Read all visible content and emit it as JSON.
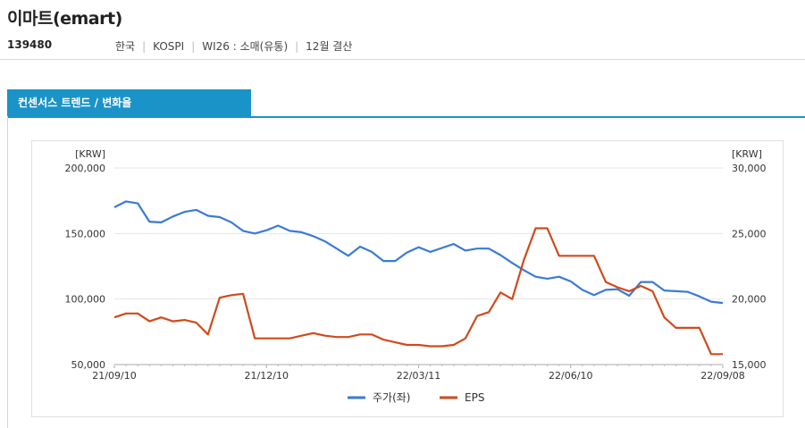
{
  "header": {
    "title": "이마트(emart)",
    "code": "139480",
    "meta": [
      "한국",
      "KOSPI",
      "WI26 : 소매(유통)",
      "12월 결산"
    ]
  },
  "tab": {
    "label": "컨센서스 트렌드 / 변화율"
  },
  "colors": {
    "accent": "#1a94c8",
    "price": "#3a7bd5",
    "eps": "#d04a1c",
    "grid": "#e6e6e6"
  },
  "chart_data": {
    "type": "line",
    "left_unit": "[KRW]",
    "right_unit": "[KRW]",
    "y_left": {
      "min": 50000,
      "max": 200000,
      "ticks": [
        "200,000",
        "150,000",
        "100,000",
        "50,000"
      ]
    },
    "y_right": {
      "min": 15000,
      "max": 30000,
      "ticks": [
        "30,000",
        "25,000",
        "20,000",
        "15,000"
      ]
    },
    "x_ticks": [
      "21/09/10",
      "21/12/10",
      "22/03/11",
      "22/06/10",
      "22/09/08"
    ],
    "series": [
      {
        "name": "주가(좌)",
        "axis": "left",
        "values": [
          170000,
          174500,
          173000,
          159000,
          158500,
          163000,
          166500,
          168000,
          163500,
          162500,
          158500,
          152000,
          150000,
          152500,
          156000,
          152000,
          151000,
          148000,
          144000,
          138500,
          133000,
          140000,
          136000,
          129000,
          129000,
          135500,
          139500,
          136000,
          139000,
          142000,
          137000,
          138500,
          138500,
          133500,
          127500,
          122000,
          117000,
          115500,
          117000,
          113500,
          107000,
          103000,
          107000,
          107500,
          102500,
          113000,
          113000,
          106500,
          106000,
          105500,
          102000,
          98000,
          97000
        ]
      },
      {
        "name": "EPS",
        "axis": "right",
        "values": [
          18600,
          18900,
          18900,
          18300,
          18600,
          18300,
          18400,
          18200,
          17300,
          20100,
          20300,
          20400,
          17000,
          17000,
          17000,
          17000,
          17200,
          17400,
          17200,
          17100,
          17100,
          17300,
          17300,
          16900,
          16700,
          16500,
          16500,
          16400,
          16400,
          16500,
          17000,
          18700,
          19000,
          20500,
          20000,
          23000,
          25400,
          25400,
          23300,
          23300,
          23300,
          23300,
          21300,
          20900,
          20600,
          21000,
          20600,
          18600,
          17800,
          17800,
          17800,
          15800,
          15800
        ]
      }
    ]
  }
}
